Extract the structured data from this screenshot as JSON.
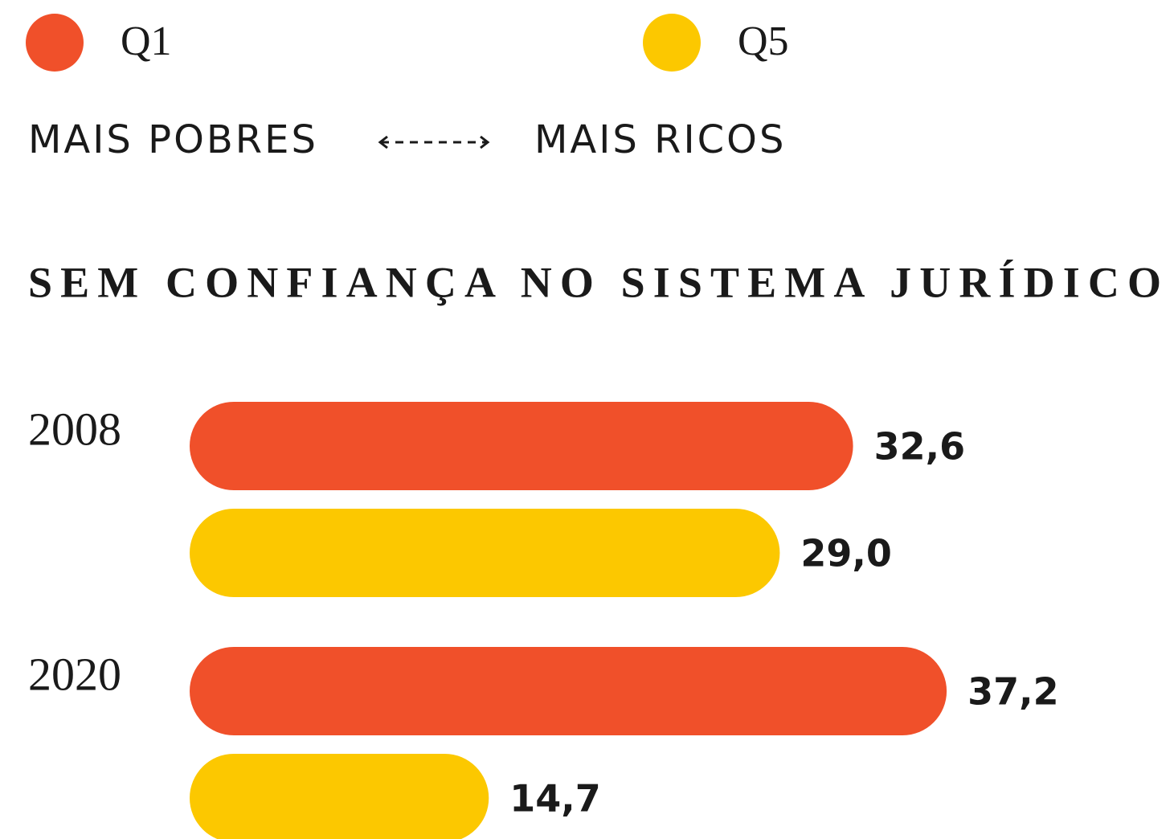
{
  "chart_data": {
    "type": "hbar",
    "title": "SEM CONFIANÇA NO SISTEMA JURÍDICO",
    "scale_labels": [
      "MAIS POBRES",
      "MAIS RICOS"
    ],
    "categories": [
      "2008",
      "2020"
    ],
    "series": [
      {
        "name": "Q1",
        "color": "#f0502a",
        "values": [
          32.6,
          37.2
        ],
        "value_labels": [
          "32,6",
          "37,2"
        ]
      },
      {
        "name": "Q5",
        "color": "#fcc800",
        "values": [
          29.0,
          14.7
        ],
        "value_labels": [
          "29,0",
          "14,7"
        ]
      }
    ],
    "xlim": [
      0,
      40
    ]
  }
}
